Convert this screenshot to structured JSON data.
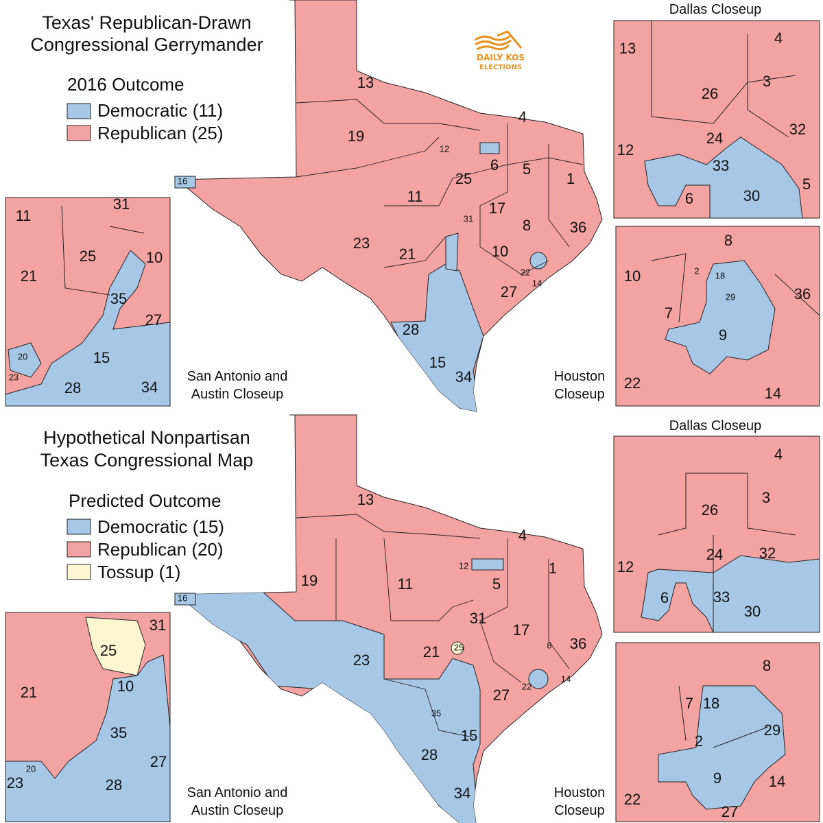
{
  "colors": {
    "republican": "#f4a3a3",
    "democratic": "#a7c7e7",
    "tossup": "#fbf6cf",
    "border": "#222222",
    "logo": "#e8901c"
  },
  "logo": {
    "line1": "DAILY KOS",
    "line2": "ELECTIONS"
  },
  "top": {
    "title_line1": "Texas' Republican-Drawn",
    "title_line2": "Congressional Gerrymander",
    "legend_title": "2016 Outcome",
    "legend": [
      {
        "label": "Democratic (11)",
        "party": "democratic"
      },
      {
        "label": "Republican (25)",
        "party": "republican"
      }
    ],
    "dallas_title": "Dallas Closeup",
    "sa_caption_1": "San Antonio and",
    "sa_caption_2": "Austin Closeup",
    "houston_caption_1": "Houston",
    "houston_caption_2": "Closeup",
    "map_labels": [
      "13",
      "4",
      "19",
      "12",
      "6",
      "5",
      "1",
      "25",
      "11",
      "17",
      "31",
      "8",
      "36",
      "23",
      "21",
      "10",
      "22",
      "14",
      "27",
      "28",
      "15",
      "34",
      "16"
    ],
    "dallas_labels": [
      "13",
      "4",
      "26",
      "3",
      "32",
      "24",
      "12",
      "33",
      "6",
      "30",
      "5"
    ],
    "houston_labels": [
      "8",
      "10",
      "2",
      "18",
      "29",
      "36",
      "7",
      "9",
      "22",
      "14"
    ],
    "sa_labels": [
      "11",
      "31",
      "25",
      "10",
      "21",
      "35",
      "27",
      "20",
      "15",
      "23",
      "28",
      "34"
    ]
  },
  "bottom": {
    "title_line1": "Hypothetical Nonpartisan",
    "title_line2": "Texas Congressional Map",
    "legend_title": "Predicted Outcome",
    "legend": [
      {
        "label": "Democratic (15)",
        "party": "democratic"
      },
      {
        "label": "Republican (20)",
        "party": "republican"
      },
      {
        "label": "Tossup (1)",
        "party": "tossup"
      }
    ],
    "dallas_title": "Dallas Closeup",
    "sa_caption_1": "San Antonio and",
    "sa_caption_2": "Austin Closeup",
    "houston_caption_1": "Houston",
    "houston_caption_2": "Closeup",
    "map_labels": [
      "13",
      "4",
      "19",
      "11",
      "12",
      "5",
      "1",
      "31",
      "17",
      "36",
      "23",
      "21",
      "25",
      "8",
      "22",
      "14",
      "27",
      "35",
      "15",
      "28",
      "34",
      "16"
    ],
    "dallas_labels": [
      "4",
      "3",
      "26",
      "24",
      "32",
      "12",
      "6",
      "33",
      "30"
    ],
    "houston_labels": [
      "8",
      "7",
      "18",
      "29",
      "2",
      "9",
      "14",
      "22",
      "27"
    ],
    "sa_labels": [
      "31",
      "25",
      "21",
      "10",
      "35",
      "27",
      "20",
      "23",
      "28"
    ]
  }
}
